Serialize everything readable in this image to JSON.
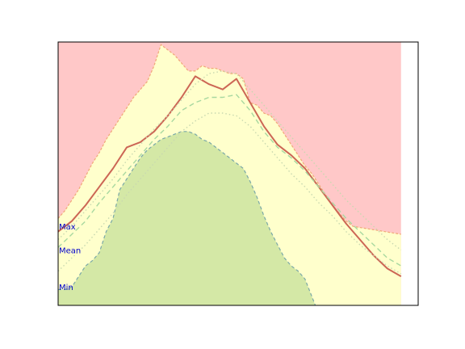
{
  "chart_data": {
    "type": "area",
    "title": "",
    "xlabel": "",
    "ylabel": "",
    "xlim": [
      0,
      105
    ],
    "ylim": [
      0,
      100
    ],
    "grid": false,
    "axis_ticks": false,
    "x": [
      0,
      2,
      4,
      6,
      8,
      10,
      12,
      14,
      16,
      18,
      20,
      22,
      24,
      26,
      28,
      30,
      32,
      34,
      36,
      38,
      40,
      42,
      44,
      46,
      48,
      50,
      52,
      54,
      56,
      58,
      60,
      62,
      64,
      66,
      68,
      70,
      72,
      74,
      76,
      78,
      80,
      82,
      84,
      86,
      88,
      90,
      92,
      94,
      96,
      98,
      100
    ],
    "upper_boundary": [
      33,
      36,
      40,
      44,
      49,
      54,
      58,
      63,
      67,
      71,
      75,
      79,
      82,
      85,
      91,
      99,
      97,
      95,
      92,
      89,
      89,
      91,
      90,
      90,
      89,
      88,
      88,
      86,
      77,
      76,
      73,
      72,
      69,
      65,
      61,
      57,
      53,
      50,
      46,
      42,
      38,
      35,
      32,
      30
    ],
    "upper_boundary_x": [
      0,
      2,
      4,
      6,
      8,
      10,
      12,
      14,
      16,
      18,
      20,
      22,
      24,
      26,
      28,
      30,
      32,
      34,
      36,
      38,
      40,
      42,
      44,
      46,
      48,
      50,
      52,
      54,
      56,
      58,
      60,
      62,
      64,
      66,
      68,
      70,
      72,
      74,
      76,
      78,
      80,
      82,
      84,
      86
    ],
    "series": [
      {
        "name": "",
        "role": "solid_curve",
        "x": [
          0,
          4,
          8,
          12,
          16,
          20,
          24,
          28,
          32,
          36,
          40,
          44,
          48,
          52,
          56,
          60,
          64,
          68,
          72,
          76,
          80,
          84,
          88,
          92,
          96,
          100
        ],
        "values": [
          28,
          32,
          38,
          45,
          52,
          60,
          62,
          66,
          72,
          79,
          87,
          84,
          82,
          86,
          77,
          68,
          61,
          57,
          52,
          45,
          38,
          31,
          25,
          19,
          14,
          11
        ]
      },
      {
        "name": "",
        "role": "dashed_curve",
        "x": [
          0,
          4,
          8,
          12,
          16,
          20,
          24,
          28,
          32,
          36,
          40,
          44,
          48,
          52,
          56,
          60,
          64,
          68,
          72,
          76,
          80,
          84,
          88,
          92,
          96,
          100
        ],
        "values": [
          22,
          27,
          32,
          39,
          45,
          51,
          57,
          63,
          68,
          74,
          77,
          79,
          79,
          80,
          74,
          66,
          60,
          56,
          51,
          45,
          39,
          33,
          28,
          23,
          18,
          15
        ]
      },
      {
        "name": "",
        "role": "dotted_upper_curve",
        "x": [
          0,
          4,
          8,
          12,
          16,
          20,
          24,
          28,
          32,
          36,
          40,
          44,
          48,
          52,
          56,
          60,
          64,
          68,
          72,
          76,
          80,
          84,
          88,
          92,
          96,
          100
        ],
        "values": [
          25,
          30,
          36,
          42,
          48,
          55,
          61,
          67,
          72,
          78,
          84,
          88,
          89,
          88,
          82,
          76,
          70,
          64,
          58,
          52,
          46,
          40,
          35,
          30,
          25,
          21
        ]
      },
      {
        "name": "",
        "role": "dotted_lower_curve",
        "x": [
          0,
          4,
          8,
          12,
          16,
          20,
          24,
          28,
          32,
          36,
          40,
          44,
          48,
          52,
          56,
          60,
          64,
          68,
          72,
          76,
          80,
          84,
          88,
          92,
          96,
          100
        ],
        "values": [
          13,
          18,
          23,
          29,
          35,
          42,
          48,
          54,
          60,
          66,
          70,
          73,
          73,
          72,
          68,
          62,
          56,
          50,
          45,
          39,
          34,
          28,
          23,
          19,
          15,
          12
        ]
      }
    ],
    "lower_boundary": [
      6,
      6,
      7,
      11,
      15,
      17,
      20,
      28,
      33,
      44,
      48,
      52,
      56,
      59,
      61,
      63,
      64,
      65,
      66,
      66,
      65,
      63,
      62,
      60,
      58,
      56,
      54,
      52,
      47,
      41,
      34,
      28,
      23,
      18,
      15,
      13,
      10,
      0
    ],
    "lower_boundary_x": [
      0,
      2,
      4,
      6,
      8,
      10,
      12,
      14,
      16,
      18,
      20,
      22,
      24,
      26,
      28,
      30,
      32,
      34,
      36,
      38,
      40,
      42,
      44,
      46,
      48,
      50,
      52,
      54,
      56,
      58,
      60,
      62,
      64,
      66,
      68,
      70,
      72,
      75
    ],
    "labels": [
      {
        "text": "Max",
        "y": 30
      },
      {
        "text": "Mean",
        "y": 21
      },
      {
        "text": "Min",
        "y": 7
      }
    ],
    "colors": {
      "top_band": "#ffc8c8",
      "middle_band": "#ffffcc",
      "bottom_band": "#d4e8a6",
      "solid_curve": "#cc6655",
      "dashed_curve": "#a8d8a0",
      "dotted_curve": "#c8d8b0",
      "upper_edge": "#f0a878",
      "lower_edge": "#7aa8a8",
      "label_text": "#0000cc"
    }
  }
}
